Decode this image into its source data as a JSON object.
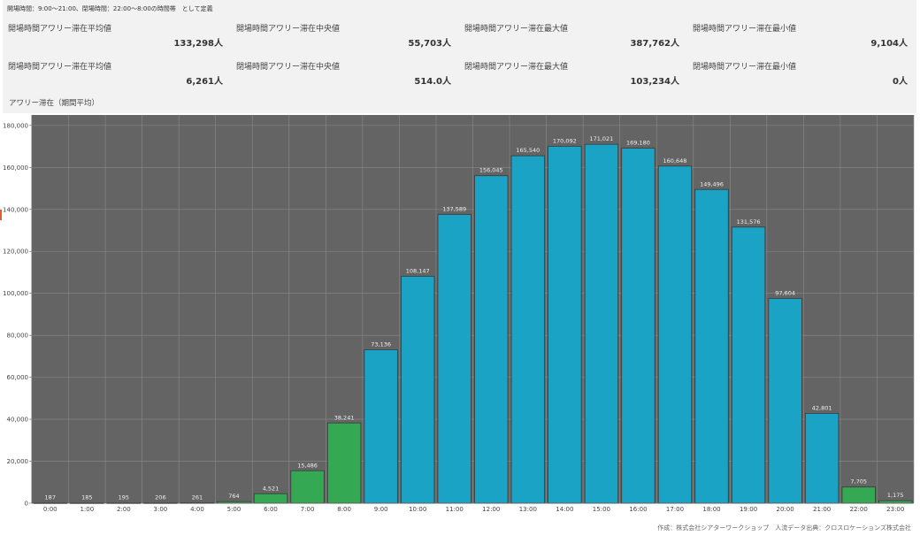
{
  "note": "開場時間：9:00〜21:00、閉場時間：22:00〜8:00の時間帯　として定義",
  "stats_row1": [
    {
      "label": "開場時間アワリー滞在平均値",
      "value": "133,298人"
    },
    {
      "label": "開場時間アワリー滞在中央値",
      "value": "55,703人"
    },
    {
      "label": "開場時間アワリー滞在最大値",
      "value": "387,762人"
    },
    {
      "label": "開場時間アワリー滞在最小値",
      "value": "9,104人"
    }
  ],
  "stats_row2": [
    {
      "label": "閉場時間アワリー滞在平均値",
      "value": "6,261人"
    },
    {
      "label": "閉場時間アワリー滞在中央値",
      "value": "514.0人"
    },
    {
      "label": "閉場時間アワリー滞在最大値",
      "value": "103,234人"
    },
    {
      "label": "閉場時間アワリー滞在最小値",
      "value": "0人"
    }
  ],
  "chart_title": "アワリー滞在（期間平均）",
  "footer": "作成：株式会社シアターワークショップ　人流データ出典：クロスロケーションズ株式会社",
  "chart_data": {
    "type": "bar",
    "categories": [
      "0:00",
      "1:00",
      "2:00",
      "3:00",
      "4:00",
      "5:00",
      "6:00",
      "7:00",
      "8:00",
      "9:00",
      "10:00",
      "11:00",
      "12:00",
      "13:00",
      "14:00",
      "15:00",
      "16:00",
      "17:00",
      "18:00",
      "19:00",
      "20:00",
      "21:00",
      "22:00",
      "23:00"
    ],
    "values": [
      187,
      185,
      195,
      206,
      261,
      764,
      4521,
      15486,
      38241,
      73136,
      108147,
      137589,
      156045,
      165540,
      170092,
      171021,
      169180,
      160648,
      149496,
      131576,
      97604,
      42801,
      7705,
      1175
    ],
    "labels": [
      "187",
      "185",
      "195",
      "206",
      "261",
      "764",
      "4,521",
      "15,486",
      "38,241",
      "73,136",
      "108,147",
      "137,589",
      "156,045",
      "165,540",
      "170,092",
      "171,021",
      "169,180",
      "160,648",
      "149,496",
      "131,576",
      "97,604",
      "42,801",
      "7,705",
      "1,175"
    ],
    "closed_hours": [
      "0:00",
      "1:00",
      "2:00",
      "3:00",
      "4:00",
      "5:00",
      "6:00",
      "7:00",
      "8:00",
      "22:00",
      "23:00"
    ],
    "colors": {
      "open": "#1ba3c6",
      "closed": "#34a853",
      "plot_bg": "#646464",
      "grid": "#8a8a8a"
    },
    "ylim": [
      0,
      185000
    ],
    "yticks": [
      0,
      20000,
      40000,
      60000,
      80000,
      100000,
      120000,
      140000,
      160000,
      180000
    ],
    "ytick_labels": [
      "0",
      "20,000",
      "40,000",
      "60,000",
      "80,000",
      "100,000",
      "120,000",
      "140,000",
      "160,000",
      "180,000"
    ],
    "grid": true,
    "xlabel": "",
    "ylabel": ""
  }
}
